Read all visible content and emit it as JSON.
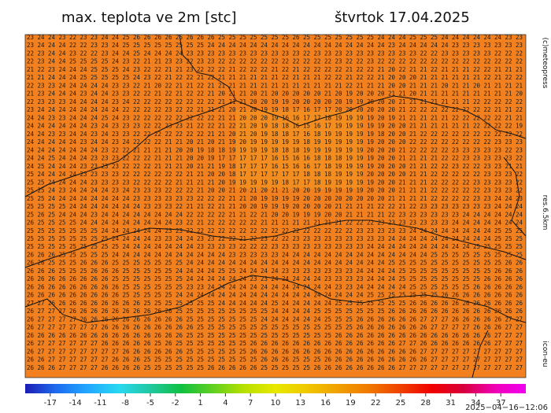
{
  "header": {
    "title": "max. teplota ve 2m [stc]",
    "date": "štvrtok 17.04.2025"
  },
  "side_labels": [
    "(c)meteopress",
    "res.6.5km",
    "icon-eu"
  ],
  "map": {
    "rows": [
      "23 24 24 23 22 23 23 24 24 25 26 26 26 26 26 26 26 26 25 25 25 25 25 25 25 26 25 25 25 25 25 25 25 24 24 24 25 25 25 24 24 24 24 24 24 23 23",
      "23 24 24 24 22 22 23 23 24 25 25 25 25 25 25 25 25 24 24 24 24 24 24 24 24 24 24 24 24 24 24 24 24 24 23 24 24 24 24 24 23 23 23 23 23 23 23",
      "22 23 24 24 23 22 22 23 24 24 25 24 24 24 24 23 23 23 23 23 23 23 23 23 23 23 22 23 23 23 23 23 23 23 23 23 23 22 22 23 23 23 23 23 22 22 22",
      "22 23 24 24 25 25 25 25 24 23 22 21 21 23 23 22 23 23 22 22 22 22 22 22 22 22 22 22 22 23 22 22 23 22 22 22 22 22 22 22 22 22 22 22 22 22 22",
      "21 22 23 24 24 24 25 25 25 24 23 22 22 21 21 23 22 22 22 21 22 22 22 21 22 21 22 22 22 22 21 22 22 21 20 22 21 21 22 21 21 21 22 22 21 21 21",
      "21 21 24 24 24 25 25 25 25 25 24 23 22 21 22 22 21 22 21 21 21 21 21 21 22 21 21 21 22 22 21 22 22 21 20 20 20 21 21 21 21 21 21 22 21 22 22",
      "22 23 23 24 24 24 24 24 23 23 22 21 20 22 21 21 22 21 21 21 21 21 21 21 21 21 21 21 21 21 22 21 21 21 20 20 21 21 21 20 21 21 20 21 21 21 21",
      "21 23 24 24 24 23 24 24 23 23 22 22 21 22 21 22 22 21 20 21 21 20 21 20 20 20 20 20 21 20 19 20 20 20 21 21 20 21 21 21 21 21 21 21 21 21 20",
      "22 23 23 23 24 24 24 24 23 24 22 22 22 22 22 22 22 22 21 21 21 20 20 19 19 20 20 20 20 20 19 19 20 20 20 21 21 21 21 21 21 21 22 22 22 22 22",
      "23 24 24 24 24 24 24 24 24 22 22 22 22 23 22 22 21 21 21 20 21 20 19 19 18 17 16 17 17 20 20 20 20 20 20 21 22 22 22 22 22 22 22 22 21 21 22",
      "24 24 23 23 24 24 24 25 24 23 22 22 22 22 22 22 22 22 21 21 20 20 20 19 16 16 17 17 18 19 19 19 19 20 19 21 21 21 21 21 22 22 22 22 22 21 21",
      "24 24 24 24 24 24 23 24 23 23 23 22 22 23 23 21 22 22 21 22 21 20 19 18 18 16 15 16 17 19 19 19 19 19 20 20 21 21 21 21 21 21 22 22 22 22 19",
      "24 24 23 23 24 24 23 24 23 23 22 22 22 22 22 22 22 21 21 20 21 20 19 18 18 17 16 18 19 19 19 19 19 18 20 20 21 22 22 22 22 22 22 22 22 22 22",
      "24 24 24 24 24 23 24 24 23 24 22 22 22 21 21 20 21 20 21 19 20 19 19 19 19 19 18 19 19 19 19 19 19 20 20 20 22 22 22 22 22 22 22 22 23 23 23",
      "24 24 24 24 24 24 24 23 22 22 21 21 21 21 20 20 19 18 18 19 19 19 19 18 18 18 19 19 19 19 19 19 20 20 20 21 22 22 22 22 23 23 23 23 23 22 23",
      "24 24 25 24 24 24 23 23 23 22 22 22 21 21 21 20 20 19 17 17 17 17 17 16 15 16 16 18 18 18 19 19 19 20 20 21 21 21 21 22 22 23 23 23 23 23 22",
      "24 25 24 24 24 23 23 23 23 22 22 22 21 21 21 20 21 21 19 18 17 17 17 16 15 16 16 17 18 19 19 19 19 20 20 20 21 21 22 22 23 22 22 23 23 21 21",
      "25 24 24 24 24 23 23 23 23 22 22 22 22 22 22 21 21 20 20 18 17 17 17 17 17 17 18 18 18 19 19 19 20 20 20 20 21 21 22 22 22 22 22 23 23 23 22",
      "25 25 24 24 24 24 23 23 23 23 22 22 22 22 21 21 21 21 20 19 19 19 19 19 18 17 17 18 19 19 19 19 19 20 20 21 21 21 22 22 22 22 23 23 23 23 22",
      "25 25 24 23 24 24 24 24 23 24 23 23 23 22 22 22 21 20 20 21 20 21 20 21 21 20 20 19 19 19 19 19 20 20 20 21 21 21 22 22 22 22 22 23 23 23 22",
      "25 25 24 24 24 24 24 24 24 24 23 23 23 23 23 23 22 22 22 21 21 20 19 19 19 19 20 20 20 20 20 20 20 20 21 21 21 21 22 22 22 22 23 23 24 24 23",
      "25 25 25 25 24 24 24 24 24 24 24 23 23 23 22 21 21 22 21 21 20 20 19 19 19 20 20 20 20 21 21 21 21 22 22 21 22 23 23 23 23 23 23 23 24 24 24",
      "25 26 25 24 24 24 23 24 24 24 24 24 24 24 24 22 22 22 22 21 21 22 21 20 20 19 19 19 20 20 21 21 21 21 22 23 23 23 23 23 23 24 24 24 24 24 24",
      "26 25 25 25 25 24 24 24 24 24 24 24 24 24 23 22 21 22 22 22 22 22 21 21 21 21 21 21 21 21 22 22 22 23 23 23 23 23 23 23 24 24 24 24 24 24 24",
      "25 25 25 25 25 25 25 24 24 24 24 24 24 23 23 22 22 22 22 22 22 22 22 22 22 22 22 22 22 22 22 23 23 23 23 23 24 24 24 24 24 24 24 24 25 25 25",
      "25 25 25 25 25 25 25 25 24 24 24 24 23 23 24 24 23 23 22 22 21 22 23 22 22 23 23 23 23 23 23 23 23 23 24 24 24 24 24 24 24 24 24 24 25 25 25",
      "25 25 25 25 25 25 25 25 25 24 24 24 24 24 24 24 23 23 23 23 22 22 22 23 23 23 23 23 23 23 23 23 24 24 24 24 24 24 24 24 24 24 25 25 25 25 25",
      "26 26 26 25 25 25 25 25 24 24 24 24 24 24 24 24 24 24 24 23 23 23 23 23 24 24 24 24 24 24 24 24 24 24 24 24 24 24 25 25 25 25 25 25 25 25 25",
      "26 26 25 25 25 26 26 26 25 25 25 25 25 25 25 24 24 24 24 24 24 24 24 24 24 24 24 24 24 24 24 24 24 24 25 25 25 25 25 25 25 25 25 25 25 26 26",
      "26 26 26 25 25 25 26 26 26 25 25 25 25 25 24 24 24 24 25 25 24 24 24 24 23 23 23 23 23 23 23 24 24 24 24 25 25 25 25 25 25 25 25 25 26 26 26",
      "26 26 26 26 26 26 26 26 25 25 25 25 25 25 25 24 24 24 24 24 24 23 23 24 24 24 24 24 23 23 23 23 24 24 24 25 25 25 25 25 25 25 25 26 26 26 26",
      "26 26 26 26 26 26 26 26 26 25 25 25 25 25 25 23 23 24 24 24 24 24 24 24 24 24 24 24 24 23 23 24 24 24 24 24 25 25 25 25 25 25 26 26 26 26 26",
      "26 26 26 26 26 26 26 26 26 25 25 25 25 25 24 24 24 24 24 24 24 24 24 24 24 24 24 24 24 24 24 24 25 25 25 25 25 25 25 26 26 26 26 26 26 26 26",
      "27 27 26 26 26 26 26 26 26 26 26 25 25 25 25 25 25 25 24 24 24 24 24 25 24 24 24 24 24 25 25 25 25 25 25 25 26 26 26 26 26 26 26 26 26 26 26",
      "26 27 27 27 26 26 26 26 26 26 26 26 26 26 25 25 25 25 25 25 25 25 25 24 24 24 24 25 25 25 25 25 25 25 26 26 26 26 26 26 26 26 26 26 26 26 26",
      "26 27 27 27 27 26 26 26 26 26 26 26 26 26 26 25 25 25 25 25 25 25 24 24 24 24 24 24 25 25 25 26 26 26 26 26 26 27 27 27 26 26 26 26 26 27 27",
      "26 27 27 27 27 27 27 26 26 26 26 26 26 26 26 26 25 25 25 25 25 25 25 25 25 25 25 25 25 25 25 26 26 26 26 26 26 26 27 27 27 27 26 26 26 27 27",
      "26 26 26 26 26 26 26 26 26 26 26 26 26 26 26 25 25 25 25 25 25 25 25 25 25 25 25 25 25 26 26 26 26 26 26 26 26 26 26 26 26 26 26 26 27 27 27",
      "26 27 27 27 27 27 27 26 26 26 26 26 25 26 25 25 25 25 25 25 25 26 26 26 26 26 26 26 26 26 26 26 26 26 26 27 27 26 26 26 26 26 26 26 27 27 27",
      "26 27 27 27 27 27 27 27 27 26 26 26 26 26 26 25 25 25 25 25 25 26 26 26 26 26 26 26 26 26 26 26 26 26 26 26 26 27 27 27 27 27 27 27 27 27 27",
      "26 26 27 27 27 27 27 27 26 26 26 25 25 25 25 25 25 25 25 25 25 25 26 26 26 25 25 25 26 26 26 26 26 26 26 26 26 26 27 27 27 27 27 27 27 27 27",
      "26 26 26 27 27 27 27 26 26 26 26 25 25 25 25 25 25 26 26 26 26 26 25 25 25 25 25 26 26 26 26 26 26 26 26 27 27 27 27 27 27 27 27 27 27 27 27"
    ]
  },
  "colorbar": {
    "range": [
      -20,
      40
    ],
    "ticks": [
      -17,
      -14,
      -11,
      -8,
      -5,
      -2,
      1,
      4,
      7,
      10,
      13,
      16,
      19,
      22,
      25,
      28,
      31,
      34,
      37
    ],
    "colors": [
      "#1c1cb4",
      "#1e6cf0",
      "#20a8ff",
      "#28d8f0",
      "#20c8a0",
      "#10c040",
      "#60d020",
      "#b8e000",
      "#e8e800",
      "#f0c800",
      "#f0a000",
      "#f07800",
      "#f04000",
      "#f00000",
      "#d8003c",
      "#f000b4",
      "#f000f0"
    ]
  },
  "timestamp": "2025−04−16−12:06"
}
